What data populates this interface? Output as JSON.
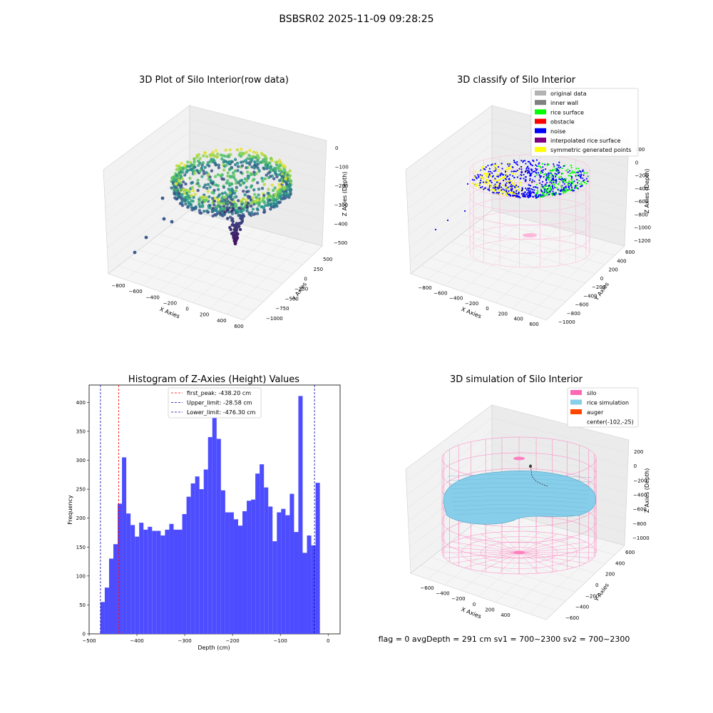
{
  "figure": {
    "title": "BSBSR02 2025-11-09 09:28:25",
    "stats": "flag = 0     avgDepth = 291 cm  sv1 = 700~2300  sv2 = 700~2300"
  },
  "panels": {
    "raw": {
      "title": "3D Plot of Silo Interior(row data)",
      "xlabel": "X Axies",
      "ylabel": "Y Axies",
      "zlabel": "Z Axies (Depth)",
      "xticks": [
        "−800",
        "−600",
        "−400",
        "−200",
        "0",
        "200",
        "400",
        "600"
      ],
      "yticks": [
        "500",
        "250",
        "0",
        "−250",
        "−500",
        "−750",
        "−1000"
      ],
      "zticks": [
        "0",
        "−100",
        "−200",
        "−300",
        "−400",
        "−500"
      ]
    },
    "classify": {
      "title": "3D classify of Silo Interior",
      "xlabel": "X Axies",
      "ylabel": "Y Axies",
      "zlabel": "Z Axies (Depth)",
      "xticks": [
        "−800",
        "−600",
        "−400",
        "−200",
        "0",
        "200",
        "400",
        "600"
      ],
      "yticks": [
        "600",
        "400",
        "200",
        "0",
        "−200",
        "−400",
        "−600",
        "−800",
        "−1000"
      ],
      "zticks": [
        "200",
        "0",
        "−200",
        "−400",
        "−600",
        "−800",
        "−1000",
        "−1200"
      ],
      "legend": [
        {
          "label": "original data",
          "color": "#b3b3b3"
        },
        {
          "label": "inner wall",
          "color": "#808080"
        },
        {
          "label": "rice surface",
          "color": "#00ff00"
        },
        {
          "label": "obstacle",
          "color": "#ff0000"
        },
        {
          "label": "noise",
          "color": "#0000ff"
        },
        {
          "label": "interpolated rice surface",
          "color": "#800080"
        },
        {
          "label": "symmetric generated points",
          "color": "#ffff00"
        }
      ]
    },
    "simulation": {
      "title": "3D simulation of Silo Interior",
      "xlabel": "X Axies",
      "ylabel": "Y Axies",
      "zlabel": "Z Axies (Depth)",
      "xticks": [
        "−600",
        "−400",
        "−200",
        "0",
        "200",
        "400"
      ],
      "yticks": [
        "600",
        "400",
        "200",
        "0",
        "−200",
        "−400",
        "−600"
      ],
      "zticks": [
        "200",
        "0",
        "−200",
        "−400",
        "−600",
        "−800",
        "−1000"
      ],
      "legend": [
        {
          "label": "silo",
          "color": "#ff69b4"
        },
        {
          "label": "rice simulation",
          "color": "#87ceeb"
        },
        {
          "label": "auger",
          "color": "#ff4500"
        },
        {
          "label": "center(-102,-25)",
          "color": ""
        }
      ]
    }
  },
  "chart_data": {
    "type": "bar",
    "title": "Histogram of Z-Axies (Height) Values",
    "xlabel": "Depth (cm)",
    "ylabel": "Frequency",
    "xlim": [
      -500,
      25
    ],
    "ylim": [
      0,
      430
    ],
    "xticks": [
      "−500",
      "−400",
      "−300",
      "−200",
      "−100",
      "0"
    ],
    "yticks": [
      "0",
      "50",
      "100",
      "150",
      "200",
      "250",
      "300",
      "350",
      "400"
    ],
    "bin_start": -476.3,
    "bin_width": 9.0,
    "color": "#4d4dff",
    "values": [
      55,
      80,
      130,
      155,
      225,
      305,
      208,
      188,
      168,
      192,
      180,
      185,
      178,
      178,
      170,
      180,
      190,
      180,
      180,
      207,
      237,
      260,
      272,
      250,
      284,
      340,
      382,
      337,
      248,
      210,
      210,
      198,
      187,
      212,
      230,
      232,
      277,
      293,
      253,
      220,
      160,
      210,
      216,
      205,
      242,
      176,
      411,
      140,
      170,
      153,
      261
    ],
    "vlines": [
      {
        "label": "first_peak: -438.20 cm",
        "x": -438.2,
        "color": "#ff0000"
      },
      {
        "label": "Upper_limit: -28.58 cm",
        "x": -28.58,
        "color": "#0000aa"
      },
      {
        "label": "Lower_limit: -476.30 cm",
        "x": -476.3,
        "color": "#0000aa"
      }
    ],
    "legend_position": "top-center"
  }
}
